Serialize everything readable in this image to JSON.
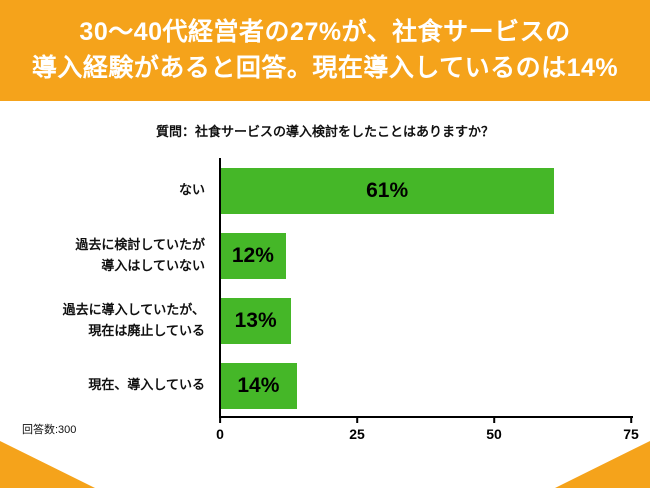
{
  "banner": {
    "line1": "30〜40代経営者の27%が、社食サービスの",
    "line2": "導入経験があると回答。現在導入しているのは14%",
    "background": "#F5A31B",
    "text_color": "#FFFFFF"
  },
  "chart_data": {
    "type": "bar",
    "orientation": "horizontal",
    "title": "質問：社食サービスの導入検討をしたことはありますか？",
    "categories": [
      [
        "ない"
      ],
      [
        "過去に検討していたが",
        "導入はしていない"
      ],
      [
        "過去に導入していたが、",
        "現在は廃止している"
      ],
      [
        "現在、導入している"
      ]
    ],
    "values": [
      61,
      12,
      13,
      14
    ],
    "value_labels": [
      "61%",
      "12%",
      "13%",
      "14%"
    ],
    "xlim": [
      0,
      75
    ],
    "xticks": [
      0,
      25,
      50,
      75
    ],
    "bar_color": "#45B728",
    "grid": false,
    "legend": "none",
    "footnote": "回答数:300"
  },
  "decor": {
    "corner_color": "#F5A31B"
  }
}
